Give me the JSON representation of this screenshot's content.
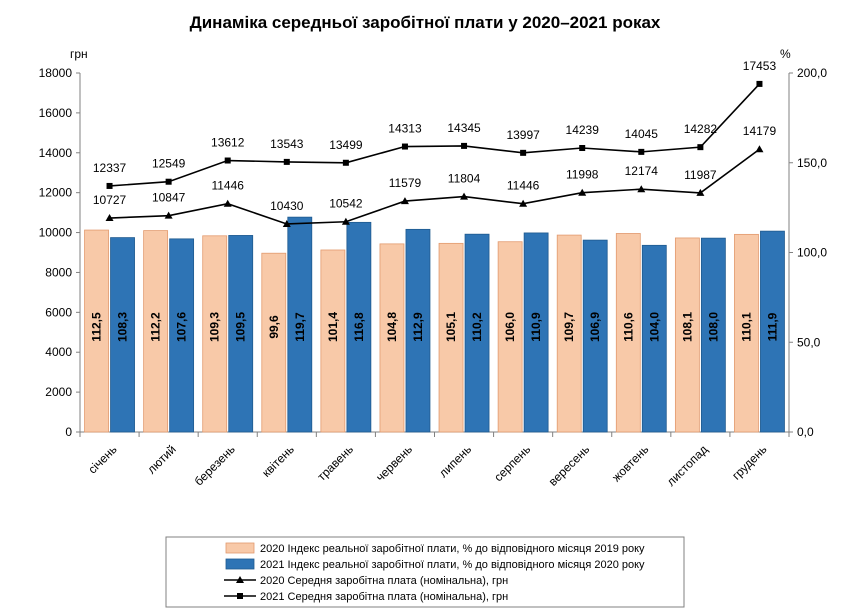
{
  "chart_data": {
    "type": "bar",
    "title": "Динаміка середньої заробітної плати у 2020–2021 роках",
    "ylabel_left": "грн",
    "ylabel_right": "%",
    "ylim_left": [
      0,
      18000
    ],
    "ylim_right": [
      0,
      200
    ],
    "yticks_left": [
      "0",
      "2000",
      "4000",
      "6000",
      "8000",
      "10000",
      "12000",
      "14000",
      "16000",
      "18000"
    ],
    "yticks_right": [
      "0,0",
      "50,0",
      "100,0",
      "150,0",
      "200,0"
    ],
    "categories": [
      "січень",
      "лютий",
      "березень",
      "квітень",
      "травень",
      "червень",
      "липень",
      "серпень",
      "вересень",
      "жовтень",
      "листопад",
      "грудень"
    ],
    "series": [
      {
        "name": "2020 Індекс реальної заробітної плати, % до відповідного місяця 2019 року",
        "kind": "bar",
        "axis": "right",
        "color": "#f8c9a8",
        "stroke": "#e29a6e",
        "values": [
          112.5,
          112.2,
          109.3,
          99.6,
          101.4,
          104.8,
          105.1,
          106.0,
          109.7,
          110.6,
          108.1,
          110.1
        ],
        "labels": [
          "112,5",
          "112,2",
          "109,3",
          "99,6",
          "101,4",
          "104,8",
          "105,1",
          "106,0",
          "109,7",
          "110,6",
          "108,1",
          "110,1"
        ]
      },
      {
        "name": "2021 Індекс реальної заробітної плати, % до відповідного місяця 2020 року",
        "kind": "bar",
        "axis": "right",
        "color": "#2e74b5",
        "stroke": "#1f5a8f",
        "values": [
          108.3,
          107.6,
          109.5,
          119.7,
          116.8,
          112.9,
          110.2,
          110.9,
          106.9,
          104.0,
          108.0,
          111.9
        ],
        "labels": [
          "108,3",
          "107,6",
          "109,5",
          "119,7",
          "116,8",
          "112,9",
          "110,2",
          "110,9",
          "106,9",
          "104,0",
          "108,0",
          "111,9"
        ]
      },
      {
        "name": "2020 Середня заробітна плата (номінальна), грн",
        "kind": "line",
        "axis": "left",
        "marker": "triangle",
        "color": "#000000",
        "values": [
          10727,
          10847,
          11446,
          10430,
          10542,
          11579,
          11804,
          11446,
          11998,
          12174,
          11987,
          14179
        ],
        "labels": [
          "10727",
          "10847",
          "11446",
          "10430",
          "10542",
          "11579",
          "11804",
          "11446",
          "11998",
          "12174",
          "11987",
          "14179"
        ]
      },
      {
        "name": "2021 Середня заробітна плата (номінальна), грн",
        "kind": "line",
        "axis": "left",
        "marker": "square",
        "color": "#000000",
        "values": [
          12337,
          12549,
          13612,
          13543,
          13499,
          14313,
          14345,
          13997,
          14239,
          14045,
          14282,
          17453
        ],
        "labels": [
          "12337",
          "12549",
          "13612",
          "13543",
          "13499",
          "14313",
          "14345",
          "13997",
          "14239",
          "14045",
          "14282",
          "17453"
        ]
      }
    ],
    "legend_position": "bottom"
  }
}
